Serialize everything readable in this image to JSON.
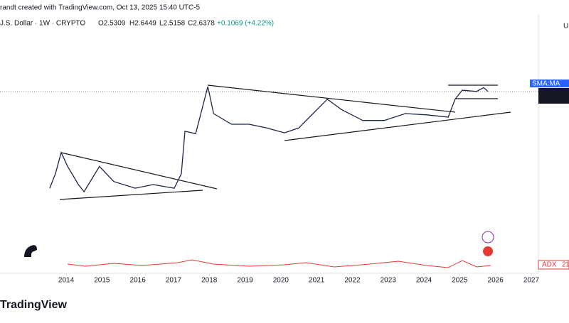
{
  "header": {
    "attribution": "randt created with TradingView.com, Oct 13, 2025 15:40 UTC-5",
    "symbol": "J.S. Dollar · 1W · CRYPTO",
    "ohlc": [
      "O2.5309",
      "H2.6449",
      "L2.5158",
      "C2.6378",
      "+0.1069 (+4.22%)"
    ],
    "axis_unit": "U",
    "sma_label": "SMA:MA",
    "adx_label": "ADX",
    "adx_value": "21",
    "brand": "TradingView"
  },
  "chart_data": {
    "type": "line",
    "log_scale": true,
    "color": "#1c2546",
    "x": [
      2013.54,
      2013.7,
      2013.86,
      2014.04,
      2014.34,
      2014.5,
      2014.93,
      2015.33,
      2015.93,
      2016.43,
      2017.02,
      2017.22,
      2017.32,
      2017.62,
      2017.96,
      2018.12,
      2018.62,
      2019.11,
      2019.61,
      2020.1,
      2020.5,
      2020.9,
      2021.3,
      2021.7,
      2022.29,
      2022.89,
      2023.48,
      2024.08,
      2024.68,
      2024.87,
      2025.07,
      2025.47,
      2025.67,
      2025.79
    ],
    "values": [
      0.0065,
      0.016,
      0.059,
      0.025,
      0.0081,
      0.0052,
      0.025,
      0.0098,
      0.0065,
      0.0081,
      0.0065,
      0.016,
      0.22,
      0.19,
      3.5,
      0.66,
      0.34,
      0.34,
      0.27,
      0.2,
      0.27,
      0.66,
      1.6,
      0.84,
      0.43,
      0.43,
      0.66,
      0.61,
      0.53,
      1.6,
      2.8,
      2.6,
      3.3,
      2.6
    ],
    "xlim": [
      2012.15,
      2027.2
    ],
    "ylim": [
      0.0001,
      200
    ],
    "xticks": [
      2014,
      2015,
      2016,
      2017,
      2018,
      2019,
      2020,
      2021,
      2022,
      2023,
      2024,
      2025,
      2026,
      2027
    ]
  }
}
